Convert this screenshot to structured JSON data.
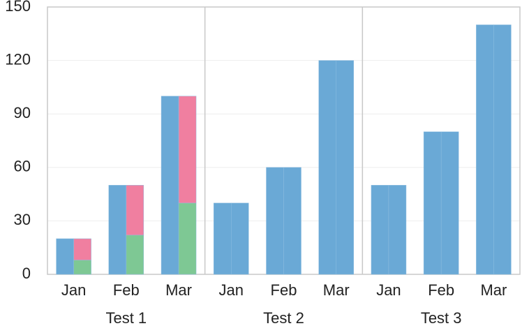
{
  "chart_data": {
    "type": "bar",
    "categories": [
      "Jan",
      "Feb",
      "Mar",
      "Jan",
      "Feb",
      "Mar",
      "Jan",
      "Feb",
      "Mar"
    ],
    "groups": [
      "Test 1",
      "Test 2",
      "Test 3"
    ],
    "series": [
      {
        "color": "#6aa9d6",
        "stack": "left",
        "values": [
          20,
          50,
          100,
          40,
          60,
          120,
          50,
          80,
          140
        ]
      },
      {
        "color": "#7ec894",
        "stack": "right",
        "values": [
          8,
          22,
          40,
          null,
          null,
          null,
          null,
          null,
          null
        ]
      },
      {
        "color": "#f07fa0",
        "stack": "right",
        "values": [
          12,
          28,
          60,
          null,
          null,
          null,
          null,
          null,
          null
        ]
      },
      {
        "color": "#6aa9d6",
        "stack": "right",
        "values": [
          null,
          null,
          null,
          40,
          60,
          120,
          50,
          80,
          140
        ]
      }
    ],
    "ylim": [
      0,
      150
    ],
    "yticks": [
      0,
      30,
      60,
      90,
      120,
      150
    ],
    "grid": true
  }
}
